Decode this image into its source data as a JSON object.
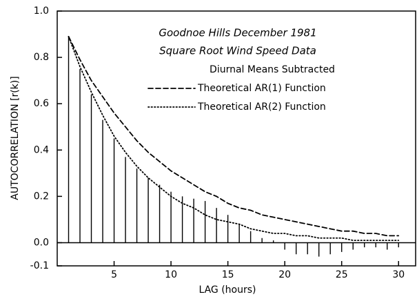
{
  "chart_data": {
    "type": "stem",
    "title": "Goodnoe Hills  December 1981",
    "subtitle": "Square Root Wind Speed Data",
    "annotation": "Diurnal Means Subtracted",
    "xlabel": "LAG (hours)",
    "ylabel": "AUTOCORRELATION [r(k)]",
    "x": [
      1,
      2,
      3,
      4,
      5,
      6,
      7,
      8,
      9,
      10,
      11,
      12,
      13,
      14,
      15,
      16,
      17,
      18,
      19,
      20,
      21,
      22,
      23,
      24,
      25,
      26,
      27,
      28,
      29,
      30
    ],
    "series": [
      {
        "style": "stem",
        "color": "#000000",
        "values": [
          0.89,
          0.75,
          0.64,
          0.53,
          0.45,
          0.37,
          0.32,
          0.28,
          0.25,
          0.22,
          0.2,
          0.19,
          0.18,
          0.15,
          0.12,
          0.08,
          0.05,
          0.02,
          0.01,
          -0.03,
          -0.05,
          -0.05,
          -0.06,
          -0.05,
          -0.04,
          -0.03,
          -0.02,
          -0.02,
          -0.03,
          -0.02
        ]
      },
      {
        "name": "Theoretical AR(1) Function",
        "style": "dashed",
        "color": "#000000",
        "values": [
          0.89,
          0.79,
          0.7,
          0.63,
          0.56,
          0.5,
          0.44,
          0.39,
          0.35,
          0.31,
          0.28,
          0.25,
          0.22,
          0.2,
          0.17,
          0.15,
          0.14,
          0.12,
          0.11,
          0.1,
          0.09,
          0.08,
          0.07,
          0.06,
          0.05,
          0.05,
          0.04,
          0.04,
          0.03,
          0.03
        ]
      },
      {
        "name": "Theoretical AR(2) Function",
        "style": "dotted",
        "color": "#000000",
        "values": [
          0.89,
          0.76,
          0.65,
          0.55,
          0.46,
          0.39,
          0.33,
          0.28,
          0.24,
          0.2,
          0.17,
          0.15,
          0.12,
          0.1,
          0.09,
          0.08,
          0.06,
          0.05,
          0.04,
          0.04,
          0.03,
          0.03,
          0.02,
          0.02,
          0.02,
          0.01,
          0.01,
          0.01,
          0.01,
          0.01
        ]
      }
    ],
    "xlim": [
      0,
      31.5
    ],
    "xticks": [
      5,
      10,
      15,
      20,
      25,
      30
    ],
    "ylim": [
      -0.1,
      1.0
    ],
    "yticks": [
      {
        "value": 1.0,
        "label": "1.0"
      },
      0.8,
      0.6,
      0.4,
      0.2,
      {
        "value": 0,
        "label": "0.0"
      },
      -0.1
    ]
  }
}
